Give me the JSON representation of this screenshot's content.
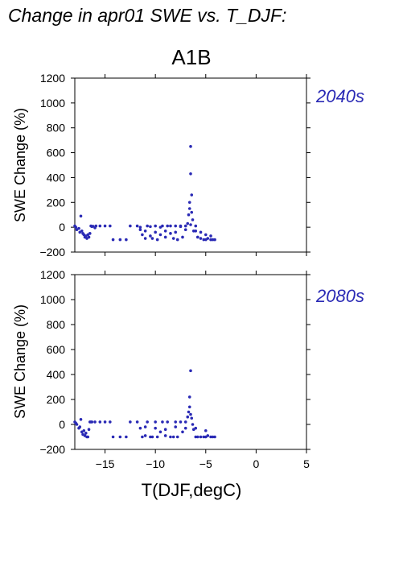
{
  "page": {
    "title": "Change in apr01 SWE vs. T_DJF:"
  },
  "colors": {
    "points": "#2a2ab5",
    "panel_label": "#2a2ab5",
    "axes": "#000000"
  },
  "chart_data": [
    {
      "type": "scatter",
      "scenario_title": "A1B",
      "panel_label": "2040s",
      "xlabel": "",
      "ylabel": "SWE Change (%)",
      "xlim": [
        -18,
        5
      ],
      "ylim": [
        -200,
        1200
      ],
      "yticks": [
        -200,
        0,
        200,
        400,
        600,
        800,
        1000,
        1200
      ],
      "xticks": [
        -15,
        -10,
        -5,
        0,
        5
      ],
      "x_tick_labels_shown": false,
      "grid": false,
      "series": [
        {
          "x": [
            -18.0,
            -17.9,
            -17.8,
            -17.6,
            -17.5,
            -17.4,
            -17.3,
            -17.2,
            -17.1,
            -17.0,
            -16.9,
            -16.8,
            -16.7,
            -16.6,
            -16.5,
            -16.4,
            -16.3,
            -16.2,
            -16.0,
            -15.9,
            -15.5,
            -15.0,
            -14.5,
            -14.2,
            -13.5,
            -12.9,
            -12.5,
            -11.8,
            -11.5,
            -11.3,
            -11.0,
            -10.8,
            -10.5,
            -10.3,
            -10.0,
            -9.8,
            -9.5,
            -9.3,
            -9.0,
            -8.8,
            -8.5,
            -8.2,
            -8.0,
            -7.8,
            -7.5,
            -7.3,
            -7.0,
            -6.8,
            -6.7,
            -6.6,
            -6.6,
            -6.5,
            -6.5,
            -6.4,
            -6.4,
            -6.3,
            -6.2,
            -6.0,
            -5.8,
            -5.5,
            -5.2,
            -5.0,
            -4.8,
            -4.5,
            -4.3,
            -4.1,
            -11.0,
            -10.0,
            -9.0,
            -8.0,
            -7.0,
            -6.0,
            -5.0,
            -11.5,
            -10.5,
            -9.5,
            -8.5,
            -7.5,
            -6.5,
            -5.5,
            -4.5
          ],
          "y": [
            10,
            0,
            -20,
            -10,
            -40,
            90,
            -30,
            -50,
            -60,
            -80,
            -70,
            -90,
            -60,
            -80,
            -50,
            10,
            5,
            8,
            -5,
            10,
            10,
            10,
            10,
            -100,
            -100,
            -100,
            10,
            10,
            -20,
            -60,
            -90,
            10,
            -70,
            -90,
            10,
            -100,
            -60,
            10,
            -80,
            10,
            -50,
            -90,
            10,
            -100,
            10,
            -80,
            10,
            30,
            100,
            150,
            200,
            650,
            430,
            260,
            120,
            60,
            -30,
            10,
            -80,
            -90,
            -100,
            -100,
            -90,
            -100,
            -100,
            -100,
            -30,
            -40,
            -30,
            -40,
            -20,
            -30,
            -60,
            0,
            5,
            0,
            10,
            5,
            20,
            -40,
            -70
          ]
        }
      ]
    },
    {
      "type": "scatter",
      "scenario_title": "",
      "panel_label": "2080s",
      "xlabel": "T(DJF,degC)",
      "ylabel": "SWE Change (%)",
      "xlim": [
        -18,
        5
      ],
      "ylim": [
        -200,
        1200
      ],
      "yticks": [
        -200,
        0,
        200,
        400,
        600,
        800,
        1000,
        1200
      ],
      "xticks": [
        -15,
        -10,
        -5,
        0,
        5
      ],
      "x_tick_labels_shown": true,
      "grid": false,
      "series": [
        {
          "x": [
            -18.0,
            -17.9,
            -17.8,
            -17.6,
            -17.5,
            -17.4,
            -17.3,
            -17.2,
            -17.1,
            -17.0,
            -16.9,
            -16.8,
            -16.7,
            -16.6,
            -16.5,
            -16.4,
            -16.3,
            -16.0,
            -15.5,
            -15.0,
            -14.5,
            -14.2,
            -13.5,
            -12.9,
            -12.5,
            -11.8,
            -11.5,
            -11.3,
            -11.0,
            -10.8,
            -10.5,
            -10.3,
            -10.0,
            -9.8,
            -9.5,
            -9.3,
            -9.0,
            -8.8,
            -8.5,
            -8.2,
            -8.0,
            -7.8,
            -7.5,
            -7.3,
            -7.0,
            -6.8,
            -6.7,
            -6.6,
            -6.6,
            -6.5,
            -6.5,
            -6.4,
            -6.3,
            -6.2,
            -6.0,
            -5.8,
            -5.5,
            -5.2,
            -5.0,
            -4.8,
            -4.5,
            -4.3,
            -4.1,
            -11.0,
            -10.0,
            -9.0,
            -8.0,
            -7.0,
            -6.0,
            -5.0
          ],
          "y": [
            20,
            10,
            0,
            -30,
            -20,
            40,
            -60,
            -80,
            -50,
            -90,
            -70,
            -100,
            -100,
            -40,
            20,
            20,
            20,
            20,
            20,
            20,
            20,
            -100,
            -100,
            -100,
            20,
            20,
            -30,
            -100,
            -90,
            20,
            -100,
            -100,
            20,
            -100,
            -60,
            20,
            -90,
            20,
            -100,
            -100,
            20,
            -100,
            20,
            -60,
            20,
            60,
            100,
            220,
            140,
            430,
            80,
            50,
            0,
            -40,
            -100,
            -100,
            -100,
            -100,
            -100,
            -90,
            -100,
            -100,
            -100,
            -20,
            -30,
            -40,
            -20,
            -30,
            -30,
            -50
          ]
        }
      ]
    }
  ]
}
